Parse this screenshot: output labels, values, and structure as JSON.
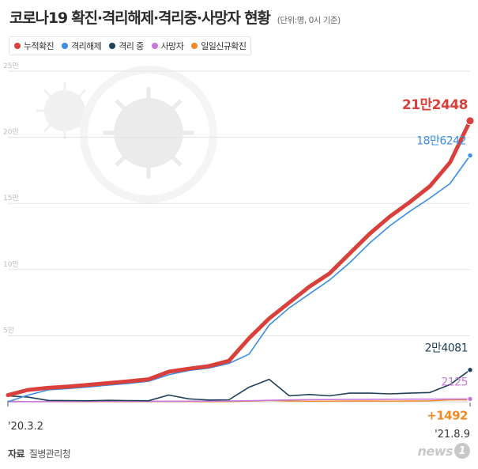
{
  "header": {
    "title": "코로나19 확진·격리해제·격리중·사망자 현황",
    "unit_note": "(단위:명, 0시 기준)"
  },
  "legend": [
    {
      "label": "누적확진",
      "color": "#d9403b"
    },
    {
      "label": "격리해제",
      "color": "#3a8ee6"
    },
    {
      "label": "격리 중",
      "color": "#1e3f5a"
    },
    {
      "label": "사망자",
      "color": "#c778d9"
    },
    {
      "label": "일일신규확진",
      "color": "#f08a24"
    }
  ],
  "source": {
    "label": "자료",
    "name": "질병관리청"
  },
  "logo": {
    "text": "news",
    "badge": "1"
  },
  "chart_data": {
    "type": "line",
    "ylim": [
      0,
      250000
    ],
    "y_ticks": [
      {
        "value": 50000,
        "label": "5만"
      },
      {
        "value": 100000,
        "label": "10만"
      },
      {
        "value": 150000,
        "label": "15만"
      },
      {
        "value": 200000,
        "label": "20만"
      },
      {
        "value": 250000,
        "label": "25만"
      }
    ],
    "x_labels": {
      "start": "'20.3.2",
      "end": "'21.8.9"
    },
    "n_points": 24,
    "series": [
      {
        "name": "누적확진",
        "key": "cumulative",
        "color": "#d9403b",
        "width": 5,
        "values": [
          5000,
          9000,
          10500,
          11500,
          12800,
          14100,
          15500,
          17000,
          22700,
          25000,
          27000,
          31000,
          48000,
          63000,
          75000,
          87000,
          97000,
          112000,
          127000,
          140000,
          151000,
          163000,
          181000,
          212448
        ],
        "end_label": "21만2448",
        "end_label_size": 17
      },
      {
        "name": "격리해제",
        "key": "released",
        "color": "#3a8ee6",
        "width": 1.6,
        "values": [
          0,
          5000,
          9000,
          10000,
          11200,
          12600,
          13900,
          15500,
          20400,
          23600,
          25400,
          29000,
          36000,
          58000,
          71000,
          81500,
          92000,
          105000,
          120000,
          133000,
          144000,
          154000,
          165000,
          186242
        ],
        "end_label": "18만6242",
        "end_label_size": 14
      },
      {
        "name": "격리 중",
        "key": "isolating",
        "color": "#1e3f5a",
        "width": 1.6,
        "values": [
          4500,
          3500,
          1000,
          900,
          800,
          1100,
          900,
          800,
          5100,
          2200,
          1300,
          1500,
          11000,
          17000,
          4500,
          5500,
          4500,
          6500,
          6500,
          6000,
          6500,
          7000,
          13000,
          24081
        ],
        "end_label": "2만4081",
        "end_label_size": 14
      },
      {
        "name": "사망자",
        "key": "deaths",
        "color": "#c778d9",
        "width": 1.6,
        "values": [
          30,
          100,
          200,
          250,
          280,
          300,
          320,
          340,
          380,
          430,
          470,
          520,
          800,
          1100,
          1400,
          1600,
          1700,
          1780,
          1830,
          1900,
          1950,
          2000,
          2060,
          2125
        ],
        "end_label": "2125",
        "end_label_size": 14
      },
      {
        "name": "일일신규확진",
        "key": "daily",
        "color": "#f08a24",
        "width": 1.4,
        "values": [
          500,
          100,
          50,
          40,
          50,
          40,
          40,
          50,
          300,
          100,
          80,
          100,
          500,
          1000,
          600,
          400,
          500,
          600,
          600,
          500,
          600,
          700,
          1400,
          1492
        ],
        "end_label": "+1492",
        "end_label_size": 15
      }
    ]
  }
}
